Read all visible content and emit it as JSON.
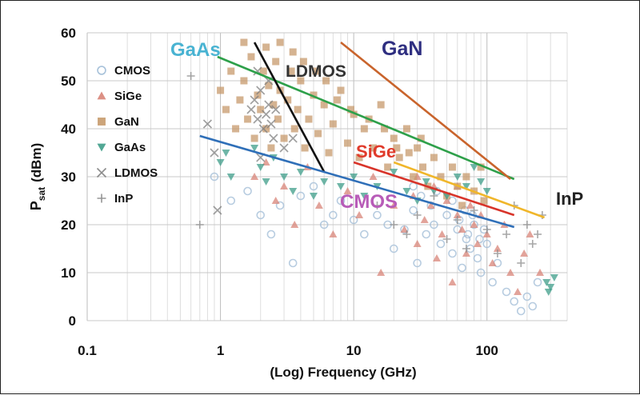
{
  "chart_data": {
    "type": "scatter",
    "title": "",
    "xlabel": "(Log) Frequency (GHz)",
    "ylabel_main": "P",
    "ylabel_sub": "sat",
    "ylabel_unit": "(dBm)",
    "x_scale": "log",
    "xlim": [
      0.1,
      400
    ],
    "ylim": [
      0,
      60
    ],
    "x_ticks": [
      0.1,
      1,
      10,
      100
    ],
    "x_tick_labels": [
      "0.1",
      "1",
      "10",
      "100"
    ],
    "y_ticks": [
      0,
      10,
      20,
      30,
      40,
      50,
      60
    ],
    "y_tick_labels": [
      "0",
      "10",
      "20",
      "30",
      "40",
      "50",
      "60"
    ],
    "grid": true,
    "legend_position": "top-left",
    "series": [
      {
        "name": "CMOS",
        "marker": "circle",
        "color": "#9fbbd6",
        "points": [
          [
            0.9,
            30
          ],
          [
            1.2,
            25
          ],
          [
            1.6,
            27
          ],
          [
            2,
            22
          ],
          [
            2.4,
            18
          ],
          [
            2.8,
            24
          ],
          [
            3.5,
            12
          ],
          [
            4,
            26
          ],
          [
            5,
            28
          ],
          [
            6,
            20
          ],
          [
            7,
            22
          ],
          [
            8,
            25
          ],
          [
            10,
            21
          ],
          [
            12,
            18
          ],
          [
            15,
            22
          ],
          [
            18,
            20
          ],
          [
            20,
            15
          ],
          [
            24,
            19
          ],
          [
            28,
            23
          ],
          [
            30,
            12
          ],
          [
            35,
            18
          ],
          [
            40,
            20
          ],
          [
            45,
            16
          ],
          [
            50,
            22
          ],
          [
            55,
            14
          ],
          [
            60,
            19
          ],
          [
            65,
            11
          ],
          [
            70,
            17
          ],
          [
            75,
            15
          ],
          [
            80,
            20
          ],
          [
            85,
            13
          ],
          [
            90,
            10
          ],
          [
            100,
            16
          ],
          [
            110,
            8
          ],
          [
            120,
            12
          ],
          [
            140,
            6
          ],
          [
            160,
            4
          ],
          [
            180,
            2
          ],
          [
            200,
            5
          ],
          [
            220,
            3
          ],
          [
            240,
            8
          ],
          [
            28,
            28
          ],
          [
            32,
            26
          ],
          [
            38,
            24
          ],
          [
            42,
            27
          ],
          [
            55,
            25
          ],
          [
            62,
            21
          ],
          [
            68,
            23
          ],
          [
            72,
            18
          ],
          [
            78,
            22
          ],
          [
            88,
            17
          ],
          [
            95,
            19
          ]
        ]
      },
      {
        "name": "SiGe",
        "marker": "triangle",
        "color": "#d88478",
        "points": [
          [
            1.8,
            30
          ],
          [
            2.2,
            33
          ],
          [
            2.6,
            25
          ],
          [
            3,
            28
          ],
          [
            3.6,
            20
          ],
          [
            4.5,
            32
          ],
          [
            5.5,
            24
          ],
          [
            7,
            18
          ],
          [
            9,
            27
          ],
          [
            11,
            22
          ],
          [
            14,
            30
          ],
          [
            16,
            10
          ],
          [
            20,
            24
          ],
          [
            24,
            19
          ],
          [
            28,
            26
          ],
          [
            30,
            16
          ],
          [
            34,
            21
          ],
          [
            38,
            24
          ],
          [
            42,
            13
          ],
          [
            46,
            18
          ],
          [
            50,
            25
          ],
          [
            55,
            8
          ],
          [
            60,
            22
          ],
          [
            65,
            19
          ],
          [
            70,
            14
          ],
          [
            75,
            24
          ],
          [
            80,
            20
          ],
          [
            85,
            16
          ],
          [
            90,
            22
          ],
          [
            100,
            18
          ],
          [
            110,
            12
          ],
          [
            120,
            15
          ],
          [
            135,
            20
          ],
          [
            150,
            10
          ],
          [
            170,
            6
          ],
          [
            190,
            14
          ],
          [
            210,
            18
          ],
          [
            250,
            10
          ],
          [
            30,
            30
          ],
          [
            40,
            28
          ],
          [
            60,
            28
          ]
        ]
      },
      {
        "name": "GaN",
        "marker": "square",
        "color": "#c79a6c",
        "points": [
          [
            1,
            48
          ],
          [
            1.1,
            44
          ],
          [
            1.2,
            52
          ],
          [
            1.3,
            40
          ],
          [
            1.4,
            46
          ],
          [
            1.5,
            50
          ],
          [
            1.6,
            42
          ],
          [
            1.7,
            55
          ],
          [
            1.8,
            38
          ],
          [
            1.9,
            47
          ],
          [
            2,
            44
          ],
          [
            2.1,
            52
          ],
          [
            2.2,
            40
          ],
          [
            2.3,
            49
          ],
          [
            2.4,
            36
          ],
          [
            2.5,
            45
          ],
          [
            2.6,
            54
          ],
          [
            2.7,
            42
          ],
          [
            2.8,
            48
          ],
          [
            3,
            38
          ],
          [
            3.2,
            46
          ],
          [
            3.4,
            52
          ],
          [
            3.6,
            40
          ],
          [
            3.8,
            44
          ],
          [
            4,
            50
          ],
          [
            4.3,
            36
          ],
          [
            4.6,
            42
          ],
          [
            5,
            47
          ],
          [
            5.4,
            39
          ],
          [
            6,
            45
          ],
          [
            6.5,
            35
          ],
          [
            7,
            41
          ],
          [
            8,
            48
          ],
          [
            9,
            37
          ],
          [
            10,
            43
          ],
          [
            11,
            34
          ],
          [
            12,
            40
          ],
          [
            14,
            36
          ],
          [
            16,
            45
          ],
          [
            18,
            32
          ],
          [
            20,
            38
          ],
          [
            22,
            34
          ],
          [
            25,
            40
          ],
          [
            28,
            30
          ],
          [
            30,
            36
          ],
          [
            33,
            32
          ],
          [
            36,
            28
          ],
          [
            40,
            34
          ],
          [
            45,
            30
          ],
          [
            50,
            26
          ],
          [
            55,
            32
          ],
          [
            60,
            28
          ],
          [
            65,
            24
          ],
          [
            70,
            30
          ],
          [
            80,
            27
          ],
          [
            90,
            32
          ],
          [
            95,
            25
          ],
          [
            1.5,
            58
          ],
          [
            2.2,
            57
          ],
          [
            2.8,
            58
          ],
          [
            3.5,
            56
          ],
          [
            4.2,
            54
          ],
          [
            5.2,
            52
          ],
          [
            6.2,
            50
          ],
          [
            7.5,
            46
          ],
          [
            9.5,
            44
          ],
          [
            13,
            42
          ],
          [
            17,
            40
          ],
          [
            21,
            36
          ],
          [
            26,
            35
          ],
          [
            32,
            38
          ]
        ]
      },
      {
        "name": "GaAs",
        "marker": "triangle-down",
        "color": "#3f9e8a",
        "points": [
          [
            1,
            33
          ],
          [
            1.1,
            35
          ],
          [
            1.2,
            30
          ],
          [
            1.8,
            36
          ],
          [
            2,
            32
          ],
          [
            2.2,
            29
          ],
          [
            2.5,
            34
          ],
          [
            3,
            30
          ],
          [
            3.5,
            27
          ],
          [
            4,
            31
          ],
          [
            5,
            26
          ],
          [
            6,
            29
          ],
          [
            8,
            28
          ],
          [
            10,
            30
          ],
          [
            12,
            26
          ],
          [
            15,
            28
          ],
          [
            20,
            31
          ],
          [
            25,
            27
          ],
          [
            30,
            25
          ],
          [
            35,
            29
          ],
          [
            40,
            27
          ],
          [
            50,
            26
          ],
          [
            60,
            30
          ],
          [
            70,
            28
          ],
          [
            80,
            32
          ],
          [
            90,
            29
          ],
          [
            100,
            27
          ],
          [
            280,
            8
          ],
          [
            300,
            7
          ],
          [
            320,
            9
          ],
          [
            290,
            6
          ]
        ]
      },
      {
        "name": "LDMOS",
        "marker": "x",
        "color": "#7e7e7e",
        "points": [
          [
            0.8,
            41
          ],
          [
            0.9,
            35
          ],
          [
            0.95,
            23
          ],
          [
            1.7,
            44
          ],
          [
            1.8,
            46
          ],
          [
            1.9,
            42
          ],
          [
            2,
            48
          ],
          [
            2.1,
            40
          ],
          [
            2.2,
            43
          ],
          [
            2.3,
            45
          ],
          [
            2.4,
            41
          ],
          [
            2.5,
            38
          ],
          [
            2.6,
            44
          ],
          [
            3,
            36
          ],
          [
            3.5,
            38
          ],
          [
            2,
            34
          ],
          [
            1.9,
            52
          ],
          [
            2.3,
            50
          ]
        ]
      },
      {
        "name": "InP",
        "marker": "plus",
        "color": "#8a8a8a",
        "points": [
          [
            0.6,
            51
          ],
          [
            0.7,
            20
          ],
          [
            15,
            24
          ],
          [
            20,
            20
          ],
          [
            25,
            18
          ],
          [
            30,
            22
          ],
          [
            40,
            26
          ],
          [
            50,
            17
          ],
          [
            60,
            21
          ],
          [
            70,
            15
          ],
          [
            80,
            23
          ],
          [
            100,
            19
          ],
          [
            120,
            14
          ],
          [
            140,
            18
          ],
          [
            160,
            24
          ],
          [
            180,
            12
          ],
          [
            200,
            20
          ],
          [
            220,
            16
          ],
          [
            240,
            18
          ],
          [
            260,
            22
          ]
        ]
      }
    ],
    "trend_lines": [
      {
        "label": "GaAs",
        "color": "#2ea04a",
        "label_color": "#49b3d2",
        "from": [
          0.95,
          55
        ],
        "to": [
          160,
          29.5
        ]
      },
      {
        "label": "GaN",
        "color": "#c9642c",
        "label_color": "#2e2e80",
        "from": [
          8,
          58
        ],
        "to": [
          150,
          29.5
        ]
      },
      {
        "label": "LDMOS",
        "color": "#111111",
        "label_color": "#333333",
        "from": [
          1.8,
          58
        ],
        "to": [
          6,
          31
        ]
      },
      {
        "label": "SiGe",
        "color": "#d8342a",
        "label_color": "#e03b2b",
        "from": [
          10,
          33
        ],
        "to": [
          160,
          22
        ]
      },
      {
        "label": "CMOS",
        "color": "#2f6fb8",
        "label_color": "#b85cb8",
        "from": [
          0.7,
          38.5
        ],
        "to": [
          160,
          19.5
        ]
      },
      {
        "label": "InP",
        "color": "#f0b62a",
        "label_color": "#222222",
        "from": [
          20,
          33
        ],
        "to": [
          270,
          21.5
        ]
      }
    ]
  }
}
